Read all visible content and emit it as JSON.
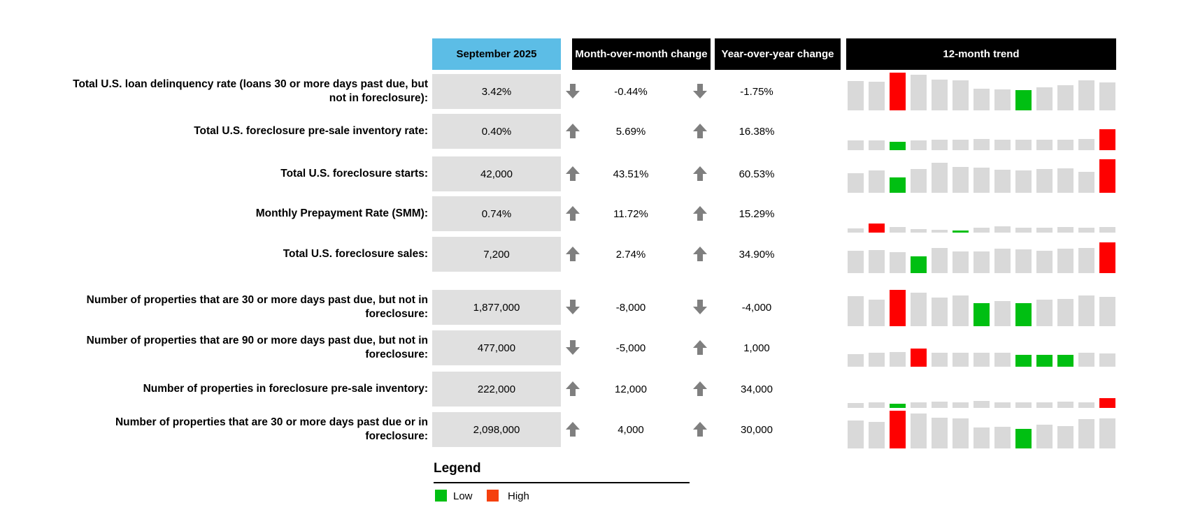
{
  "header": {
    "period_label": "September 2025",
    "mom_label": "Month-over-month change",
    "yoy_label": "Year-over-year change",
    "trend_label": "12-month trend"
  },
  "colors": {
    "period_header_bg": "#5cbde6",
    "black_header_bg": "#000000",
    "value_cell_bg": "#e0e0e0",
    "bar_gray": "#d9d9d9",
    "bar_high_red": "#fe0101",
    "bar_low_green": "#00bf12",
    "legend_high_orange": "#f5400d",
    "arrow_gray": "#7f7f7f"
  },
  "rows": [
    {
      "label": "Total U.S. loan delinquency rate (loans 30 or more days past due, but not in foreclosure):",
      "value": "3.42%",
      "mom": "-0.44%",
      "mom_dir": "down",
      "yoy": "-1.75%",
      "yoy_dir": "down",
      "trend": [
        42,
        41,
        54,
        51,
        44,
        43,
        31,
        30,
        29,
        33,
        36,
        43,
        40
      ],
      "high_index": 2,
      "low_indices": [
        8
      ]
    },
    {
      "label": "Total U.S. foreclosure pre-sale inventory rate:",
      "value": "0.40%",
      "mom": "5.69%",
      "mom_dir": "up",
      "yoy": "16.38%",
      "yoy_dir": "up",
      "trend": [
        14,
        14,
        12,
        14,
        15,
        15,
        16,
        15,
        15,
        15,
        15,
        16,
        30
      ],
      "high_index": 12,
      "low_indices": [
        2
      ]
    },
    {
      "label": "Total U.S. foreclosure starts:",
      "value": "42,000",
      "mom": "43.51%",
      "mom_dir": "up",
      "yoy": "60.53%",
      "yoy_dir": "up",
      "trend": [
        28,
        32,
        22,
        34,
        43,
        37,
        36,
        33,
        32,
        34,
        35,
        30,
        48
      ],
      "high_index": 12,
      "low_indices": [
        2
      ]
    },
    {
      "label": "Monthly Prepayment Rate (SMM):",
      "value": "0.74%",
      "mom": "11.72%",
      "mom_dir": "up",
      "yoy": "15.29%",
      "yoy_dir": "up",
      "trend": [
        6,
        13,
        8,
        5,
        4,
        3,
        7,
        9,
        7,
        7,
        8,
        7,
        8
      ],
      "high_index": 1,
      "low_indices": [
        5
      ]
    },
    {
      "label": "Total U.S. foreclosure sales:",
      "value": "7,200",
      "mom": "2.74%",
      "mom_dir": "up",
      "yoy": "34.90%",
      "yoy_dir": "up",
      "trend": [
        32,
        33,
        30,
        24,
        36,
        31,
        31,
        35,
        34,
        32,
        35,
        36,
        44
      ],
      "high_index": 12,
      "low_indices": [
        3
      ]
    },
    {
      "label": "Number of properties that are 30 or more days past due, but not in foreclosure:",
      "value": "1,877,000",
      "mom": "-8,000",
      "mom_dir": "down",
      "yoy": "-4,000",
      "yoy_dir": "down",
      "trend": [
        43,
        38,
        52,
        48,
        41,
        44,
        33,
        36,
        33,
        38,
        39,
        44,
        42
      ],
      "high_index": 2,
      "low_indices": [
        6,
        8
      ]
    },
    {
      "label": "Number of properties that are 90 or more days past due, but not in foreclosure:",
      "value": "477,000",
      "mom": "-5,000",
      "mom_dir": "down",
      "yoy": "1,000",
      "yoy_dir": "up",
      "trend": [
        18,
        20,
        21,
        26,
        20,
        20,
        20,
        20,
        17,
        17,
        17,
        20,
        19
      ],
      "high_index": 3,
      "low_indices": [
        8,
        9,
        10
      ]
    },
    {
      "label": "Number of properties in foreclosure pre-sale inventory:",
      "value": "222,000",
      "mom": "12,000",
      "mom_dir": "up",
      "yoy": "34,000",
      "yoy_dir": "up",
      "trend": [
        7,
        8,
        6,
        8,
        9,
        8,
        10,
        8,
        8,
        8,
        9,
        8,
        14
      ],
      "high_index": 12,
      "low_indices": [
        2
      ]
    },
    {
      "label": "Number of properties that are 30 or more days past due or in foreclosure:",
      "value": "2,098,000",
      "mom": "4,000",
      "mom_dir": "up",
      "yoy": "30,000",
      "yoy_dir": "up",
      "trend": [
        40,
        38,
        54,
        50,
        44,
        43,
        30,
        31,
        28,
        34,
        32,
        42,
        43
      ],
      "high_index": 2,
      "low_indices": [
        8
      ]
    }
  ],
  "legend": {
    "title": "Legend",
    "low_label": "Low",
    "high_label": "High"
  },
  "chart_data": {
    "type": "table",
    "title": "12-month trend",
    "columns": [
      "Metric",
      "September 2025",
      "Month-over-month change",
      "Year-over-year change",
      "12-month trend"
    ],
    "legend": {
      "green": "Low",
      "red_orange": "High"
    },
    "rows": [
      {
        "metric": "Total U.S. loan delinquency rate (loans 30 or more days past due, but not in foreclosure):",
        "september_2025": "3.42%",
        "mom_change": "-0.44%",
        "yoy_change": "-1.75%",
        "trend_relative_heights": [
          42,
          41,
          54,
          51,
          44,
          43,
          31,
          30,
          29,
          33,
          36,
          43,
          40
        ],
        "trend_high_bar": 3,
        "trend_low_bars": [
          9
        ]
      },
      {
        "metric": "Total U.S. foreclosure pre-sale inventory rate:",
        "september_2025": "0.40%",
        "mom_change": "5.69%",
        "yoy_change": "16.38%",
        "trend_relative_heights": [
          14,
          14,
          12,
          14,
          15,
          15,
          16,
          15,
          15,
          15,
          15,
          16,
          30
        ],
        "trend_high_bar": 13,
        "trend_low_bars": [
          3
        ]
      },
      {
        "metric": "Total U.S. foreclosure starts:",
        "september_2025": "42,000",
        "mom_change": "43.51%",
        "yoy_change": "60.53%",
        "trend_relative_heights": [
          28,
          32,
          22,
          34,
          43,
          37,
          36,
          33,
          32,
          34,
          35,
          30,
          48
        ],
        "trend_high_bar": 13,
        "trend_low_bars": [
          3
        ]
      },
      {
        "metric": "Monthly Prepayment Rate (SMM):",
        "september_2025": "0.74%",
        "mom_change": "11.72%",
        "yoy_change": "15.29%",
        "trend_relative_heights": [
          6,
          13,
          8,
          5,
          4,
          3,
          7,
          9,
          7,
          7,
          8,
          7,
          8
        ],
        "trend_high_bar": 2,
        "trend_low_bars": [
          6
        ]
      },
      {
        "metric": "Total U.S. foreclosure sales:",
        "september_2025": "7,200",
        "mom_change": "2.74%",
        "yoy_change": "34.90%",
        "trend_relative_heights": [
          32,
          33,
          30,
          24,
          36,
          31,
          31,
          35,
          34,
          32,
          35,
          36,
          44
        ],
        "trend_high_bar": 13,
        "trend_low_bars": [
          4
        ]
      },
      {
        "metric": "Number of properties that are 30 or more days past due, but not in foreclosure:",
        "september_2025": "1,877,000",
        "mom_change": "-8,000",
        "yoy_change": "-4,000",
        "trend_relative_heights": [
          43,
          38,
          52,
          48,
          41,
          44,
          33,
          36,
          33,
          38,
          39,
          44,
          42
        ],
        "trend_high_bar": 3,
        "trend_low_bars": [
          7,
          9
        ]
      },
      {
        "metric": "Number of properties that are 90 or more days past due, but not in foreclosure:",
        "september_2025": "477,000",
        "mom_change": "-5,000",
        "yoy_change": "1,000",
        "trend_relative_heights": [
          18,
          20,
          21,
          26,
          20,
          20,
          20,
          20,
          17,
          17,
          17,
          20,
          19
        ],
        "trend_high_bar": 4,
        "trend_low_bars": [
          9,
          10,
          11
        ]
      },
      {
        "metric": "Number of properties in foreclosure pre-sale inventory:",
        "september_2025": "222,000",
        "mom_change": "12,000",
        "yoy_change": "34,000",
        "trend_relative_heights": [
          7,
          8,
          6,
          8,
          9,
          8,
          10,
          8,
          8,
          8,
          9,
          8,
          14
        ],
        "trend_high_bar": 13,
        "trend_low_bars": [
          3
        ]
      },
      {
        "metric": "Number of properties that are 30 or more days past due or in foreclosure:",
        "september_2025": "2,098,000",
        "mom_change": "4,000",
        "yoy_change": "30,000",
        "trend_relative_heights": [
          40,
          38,
          54,
          50,
          44,
          43,
          30,
          31,
          28,
          34,
          32,
          42,
          43
        ],
        "trend_high_bar": 3,
        "trend_low_bars": [
          9
        ]
      }
    ]
  }
}
